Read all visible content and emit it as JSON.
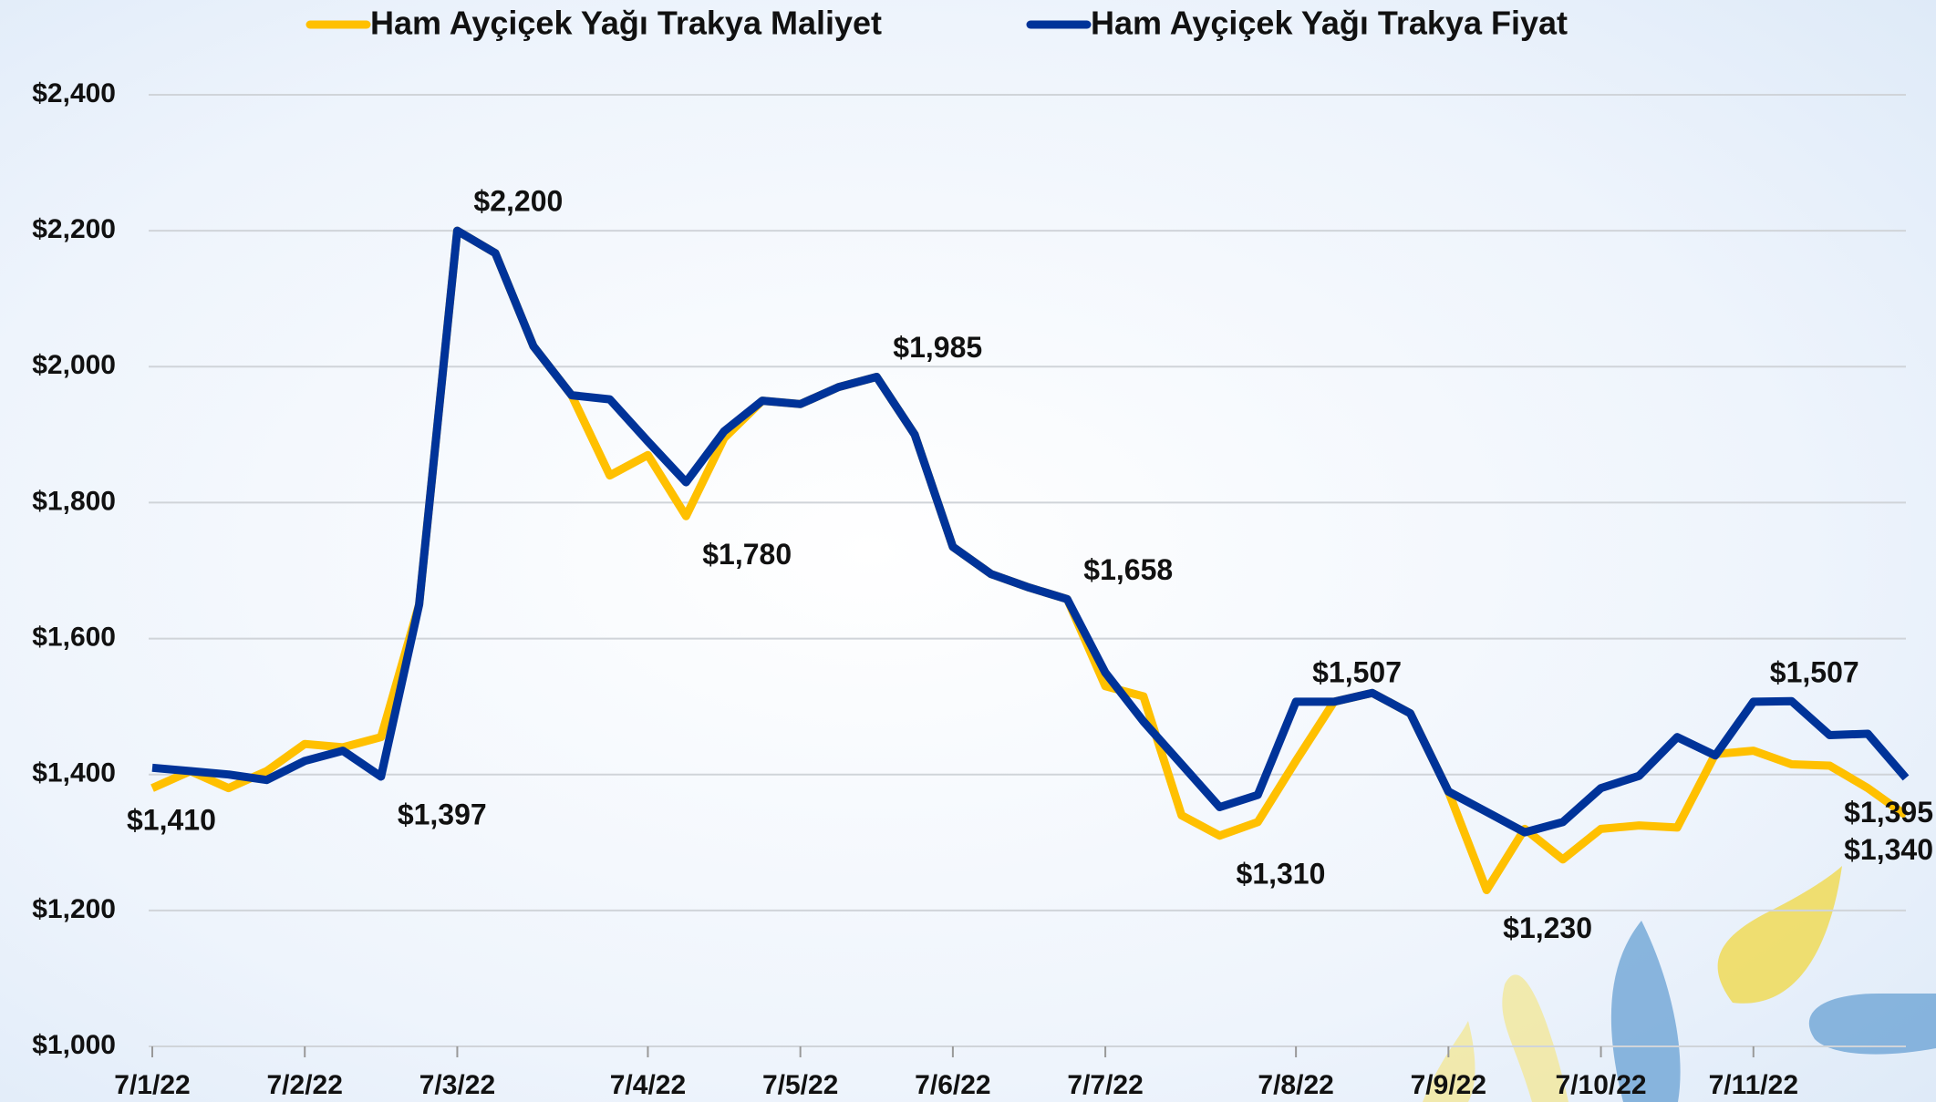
{
  "chart_data": {
    "type": "line",
    "categories": [
      "7/1/22",
      null,
      null,
      null,
      "7/2/22",
      null,
      null,
      null,
      "7/3/22",
      null,
      null,
      null,
      null,
      "7/4/22",
      null,
      null,
      null,
      "7/5/22",
      null,
      null,
      null,
      "7/6/22",
      null,
      null,
      null,
      "7/7/22",
      null,
      null,
      null,
      null,
      "7/8/22",
      null,
      null,
      null,
      "7/9/22",
      null,
      null,
      null,
      "7/10/22",
      null,
      null,
      null,
      "7/11/22",
      null,
      null,
      null,
      null
    ],
    "series": [
      {
        "name": "Ham Ayçiçek Yağı Trakya Maliyet",
        "color": "#ffc000",
        "values": [
          1380,
          1405,
          1380,
          1405,
          1445,
          1440,
          1455,
          1650,
          2200,
          2167,
          2030,
          1958,
          1840,
          1870,
          1780,
          1895,
          1950,
          1945,
          1970,
          1985,
          1900,
          1735,
          1695,
          1675,
          1658,
          1530,
          1515,
          1340,
          1310,
          1330,
          1420,
          1507,
          1520,
          1490,
          1375,
          1230,
          1320,
          1275,
          1320,
          1325,
          1322,
          1430,
          1435,
          1415,
          1413,
          1380,
          1340
        ],
        "value_labels": [
          null,
          null,
          null,
          null,
          null,
          null,
          null,
          null,
          null,
          null,
          null,
          null,
          null,
          null,
          "$1,780",
          null,
          null,
          null,
          null,
          null,
          null,
          null,
          null,
          null,
          null,
          null,
          null,
          null,
          "$1,310",
          null,
          null,
          null,
          null,
          null,
          null,
          "$1,230",
          null,
          null,
          null,
          null,
          null,
          null,
          null,
          null,
          null,
          null,
          "$1,340"
        ]
      },
      {
        "name": "Ham Ayçiçek Yağı Trakya Fiyat",
        "color": "#003399",
        "values": [
          1410,
          1405,
          1400,
          1392,
          1420,
          1435,
          1397,
          1650,
          2200,
          2167,
          2030,
          1958,
          1952,
          1890,
          1830,
          1905,
          1950,
          1945,
          1970,
          1985,
          1900,
          1735,
          1695,
          1675,
          1658,
          1550,
          1478,
          1415,
          1352,
          1370,
          1507,
          1507,
          1520,
          1490,
          1375,
          1345,
          1315,
          1330,
          1380,
          1398,
          1455,
          1428,
          1507,
          1508,
          1458,
          1460,
          1395
        ],
        "value_labels": [
          "$1,410",
          null,
          null,
          null,
          null,
          null,
          "$1,397",
          null,
          "$2,200",
          null,
          null,
          null,
          null,
          null,
          null,
          null,
          null,
          null,
          null,
          "$1,985",
          null,
          null,
          null,
          null,
          "$1,658",
          null,
          null,
          null,
          null,
          null,
          "$1,507",
          null,
          null,
          null,
          null,
          null,
          null,
          null,
          null,
          null,
          null,
          null,
          "$1,507",
          null,
          null,
          null,
          "$1,395"
        ]
      }
    ],
    "ylim": [
      1000,
      2400
    ],
    "yticks": [
      {
        "value": 1000,
        "label": "$1,000"
      },
      {
        "value": 1200,
        "label": "$1,200"
      },
      {
        "value": 1400,
        "label": "$1,400"
      },
      {
        "value": 1600,
        "label": "$1,600"
      },
      {
        "value": 1800,
        "label": "$1,800"
      },
      {
        "value": 2000,
        "label": "$2,000"
      },
      {
        "value": 2200,
        "label": "$2,200"
      },
      {
        "value": 2400,
        "label": "$2,400"
      }
    ],
    "grid": true,
    "legend": "top"
  }
}
